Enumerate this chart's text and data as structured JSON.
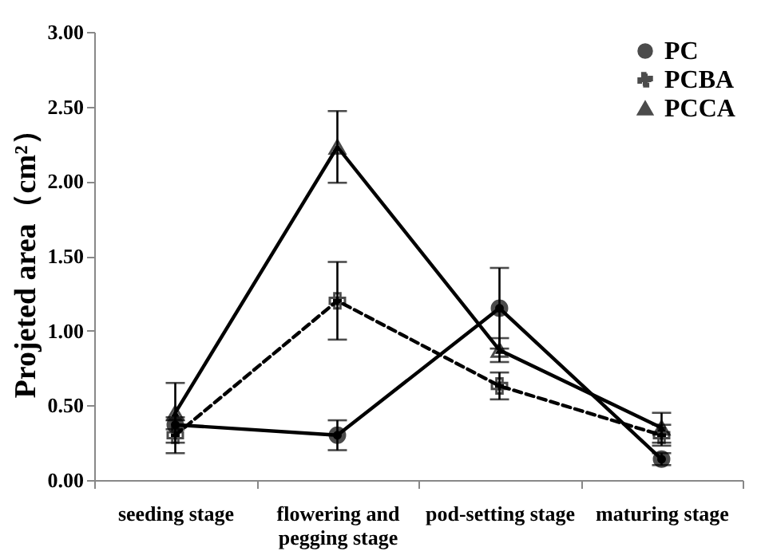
{
  "chart_data": {
    "type": "line",
    "ylabel": "Projeted area（cm²）",
    "categories": [
      "seeding stage",
      "flowering and pegging stage",
      "pod-setting stage",
      "maturing stage"
    ],
    "series": [
      {
        "name": "PC",
        "color": "#000000",
        "marker": "circle",
        "line_style": "solid",
        "values": [
          0.37,
          0.3,
          1.15,
          0.14
        ],
        "errors": [
          0.03,
          0.1,
          0.27,
          0.04
        ]
      },
      {
        "name": "PCBA",
        "color": "#000000",
        "marker": "cross",
        "line_style": "dashed",
        "values": [
          0.3,
          1.2,
          0.63,
          0.3
        ],
        "errors": [
          0.12,
          0.26,
          0.09,
          0.07
        ]
      },
      {
        "name": "PCCA",
        "color": "#000000",
        "marker": "triangle",
        "line_style": "solid",
        "values": [
          0.45,
          2.23,
          0.87,
          0.35
        ],
        "errors": [
          0.2,
          0.24,
          0.08,
          0.1
        ]
      }
    ],
    "ylim": [
      0,
      3
    ],
    "yticks": [
      {
        "value": 0,
        "label": "0.00"
      },
      {
        "value": 0.5,
        "label": "0.50"
      },
      {
        "value": 1,
        "label": "1.00"
      },
      {
        "value": 1.5,
        "label": "1.50"
      },
      {
        "value": 2,
        "label": "2.00"
      },
      {
        "value": 2.5,
        "label": "2.50"
      },
      {
        "value": 3,
        "label": "3.00"
      }
    ],
    "grid": false,
    "legend": "top right"
  }
}
